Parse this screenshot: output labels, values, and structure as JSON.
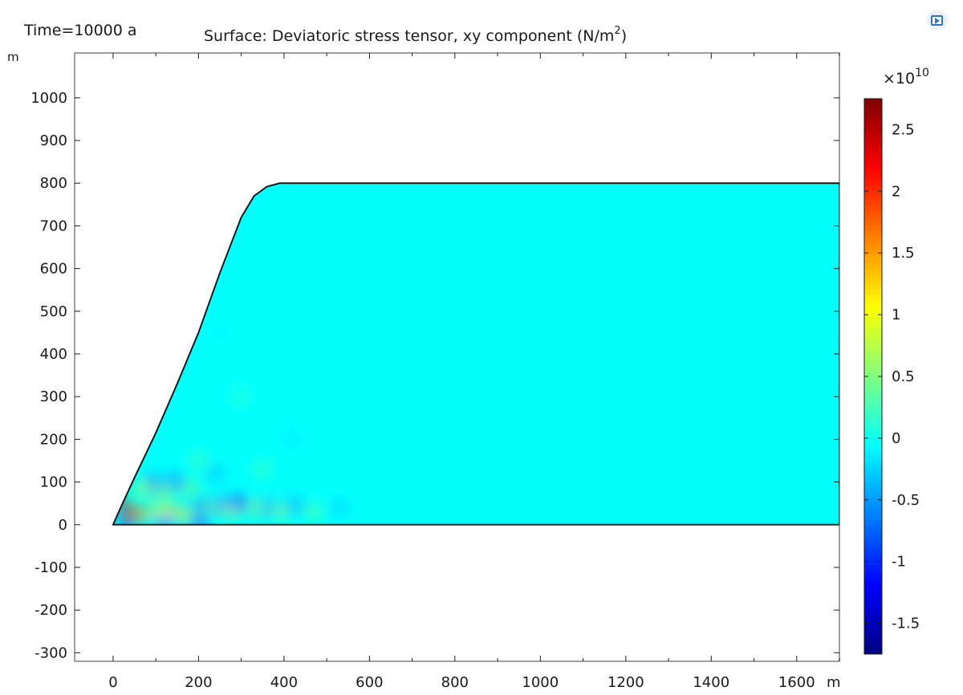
{
  "header": {
    "time_label": "Time=10000 a",
    "title_prefix": "Surface: Deviatoric stress tensor, xy component (N/m",
    "title_sup": "2",
    "title_suffix": ")",
    "export_icon": "export-image-icon"
  },
  "chart_data": {
    "type": "heatmap",
    "title": "Surface: Deviatoric stress tensor, xy component (N/m²)",
    "time": "Time=10000 a",
    "x_unit": "m",
    "y_unit": "m",
    "xlim": [
      -90,
      1700
    ],
    "ylim": [
      -320,
      1105
    ],
    "x_ticks": [
      0,
      200,
      400,
      600,
      800,
      1000,
      1200,
      1400,
      1600
    ],
    "y_ticks": [
      -300,
      -200,
      -100,
      0,
      100,
      200,
      300,
      400,
      500,
      600,
      700,
      800,
      900,
      1000
    ],
    "domain": {
      "base_y": 0,
      "top_y": 800,
      "right_x": 1700,
      "slope_profile": [
        [
          0,
          0
        ],
        [
          20,
          45
        ],
        [
          50,
          110
        ],
        [
          100,
          215
        ],
        [
          150,
          330
        ],
        [
          200,
          450
        ],
        [
          250,
          590
        ],
        [
          300,
          720
        ],
        [
          330,
          770
        ],
        [
          360,
          792
        ],
        [
          390,
          800
        ]
      ]
    },
    "colorbar": {
      "multiplier_base": "×10",
      "multiplier_exp": "10",
      "min": -1.75,
      "max": 2.75,
      "ticks": [
        -1.5,
        -1,
        -0.5,
        0,
        0.5,
        1,
        1.5,
        2,
        2.5
      ],
      "tick_labels": [
        "-1.5",
        "-1",
        "-0.5",
        "0",
        "0.5",
        "1",
        "1.5",
        "2",
        "2.5"
      ],
      "colormap": "rainbow",
      "colors": [
        "#00007f",
        "#0000ff",
        "#0080ff",
        "#00ffff",
        "#80ff80",
        "#ffff00",
        "#ff8000",
        "#ff0000",
        "#7f0000"
      ]
    },
    "field": {
      "background_value": -0.05,
      "features": [
        {
          "x": 25,
          "y": 45,
          "v": 2.6
        },
        {
          "x": 45,
          "y": 25,
          "v": 1.8
        },
        {
          "x": 30,
          "y": 5,
          "v": -1.6
        },
        {
          "x": 70,
          "y": 25,
          "v": 1.5
        },
        {
          "x": 110,
          "y": 30,
          "v": 0.9
        },
        {
          "x": 145,
          "y": 30,
          "v": 1.3
        },
        {
          "x": 175,
          "y": 20,
          "v": 0.6
        },
        {
          "x": 205,
          "y": 45,
          "v": -1.2
        },
        {
          "x": 235,
          "y": 40,
          "v": 0.5
        },
        {
          "x": 255,
          "y": 45,
          "v": -0.6
        },
        {
          "x": 280,
          "y": 35,
          "v": 0.7
        },
        {
          "x": 295,
          "y": 50,
          "v": -0.9
        },
        {
          "x": 335,
          "y": 40,
          "v": 0.5
        },
        {
          "x": 365,
          "y": 40,
          "v": -0.5
        },
        {
          "x": 390,
          "y": 30,
          "v": 0.4
        },
        {
          "x": 425,
          "y": 45,
          "v": -0.4
        },
        {
          "x": 470,
          "y": 30,
          "v": 0.3
        },
        {
          "x": 530,
          "y": 40,
          "v": -0.25
        },
        {
          "x": 200,
          "y": 5,
          "v": -0.8
        },
        {
          "x": 120,
          "y": 5,
          "v": -0.6
        },
        {
          "x": 90,
          "y": 95,
          "v": -0.9
        },
        {
          "x": 145,
          "y": 100,
          "v": -0.6
        },
        {
          "x": 70,
          "y": 85,
          "v": 0.6
        },
        {
          "x": 120,
          "y": 75,
          "v": 0.5
        },
        {
          "x": 180,
          "y": 85,
          "v": 0.4
        },
        {
          "x": 240,
          "y": 120,
          "v": -0.3
        },
        {
          "x": 350,
          "y": 130,
          "v": 0.2
        },
        {
          "x": 200,
          "y": 150,
          "v": 0.2
        },
        {
          "x": 420,
          "y": 200,
          "v": -0.15
        },
        {
          "x": 300,
          "y": 300,
          "v": 0.12
        },
        {
          "x": 250,
          "y": 450,
          "v": -0.1
        }
      ]
    }
  }
}
